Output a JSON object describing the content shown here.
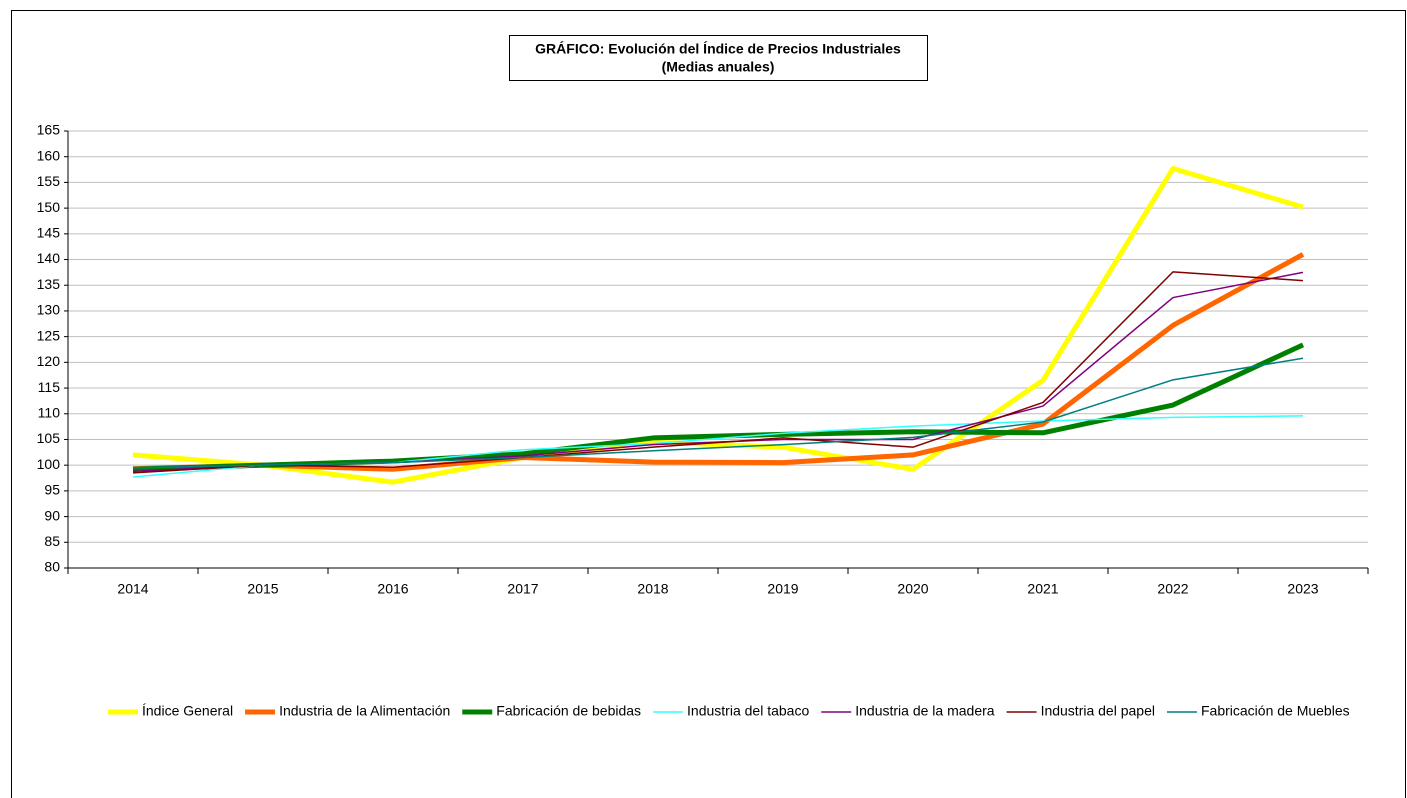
{
  "chart_data": {
    "type": "line",
    "title": "GRÁFICO: Evolución del Índice de Precios Industriales",
    "subtitle": "(Medias anuales)",
    "categories": [
      "2014",
      "2015",
      "2016",
      "2017",
      "2018",
      "2019",
      "2020",
      "2021",
      "2022",
      "2023"
    ],
    "ylim": [
      80,
      165
    ],
    "yticks": [
      80,
      85,
      90,
      95,
      100,
      105,
      110,
      115,
      120,
      125,
      130,
      135,
      140,
      145,
      150,
      155,
      160,
      165
    ],
    "grid": true,
    "legend": "bottom",
    "series": [
      {
        "name": "Índice General",
        "color": "#ffff00",
        "line_width": 5,
        "values": [
          102,
          100,
          96.7,
          101.5,
          104.5,
          103.5,
          99.2,
          116.5,
          157.7,
          150.2
        ]
      },
      {
        "name": "Industria de la Alimentación",
        "color": "#ff6600",
        "line_width": 5,
        "values": [
          99.3,
          100,
          99.2,
          101.5,
          100.6,
          100.5,
          102,
          108,
          127.2,
          141
        ]
      },
      {
        "name": "Fabricación de bebidas",
        "color": "#008000",
        "line_width": 5,
        "values": [
          99.2,
          100,
          100.8,
          102.2,
          105.3,
          106,
          106.5,
          106.3,
          111.7,
          123.4
        ]
      },
      {
        "name": "Industria del tabaco",
        "color": "#33ffff",
        "line_width": 1.5,
        "values": [
          97.7,
          100,
          100.5,
          103,
          104.2,
          106.2,
          107.6,
          108.6,
          109.3,
          109.6
        ]
      },
      {
        "name": "Industria de la madera",
        "color": "#800080",
        "line_width": 1.5,
        "values": [
          98.8,
          100,
          100.5,
          101.8,
          104,
          105,
          105,
          111.5,
          132.6,
          137.5
        ]
      },
      {
        "name": "Industria del papel",
        "color": "#800000",
        "line_width": 1.5,
        "values": [
          98.5,
          100,
          99.6,
          101.5,
          103.5,
          105.3,
          103.5,
          112.2,
          137.6,
          135.9
        ]
      },
      {
        "name": "Fabricación de Muebles",
        "color": "#008080",
        "line_width": 1.5,
        "values": [
          99.5,
          100,
          100.5,
          101.5,
          102.8,
          104,
          105.4,
          108.4,
          116.6,
          120.8
        ]
      }
    ]
  }
}
